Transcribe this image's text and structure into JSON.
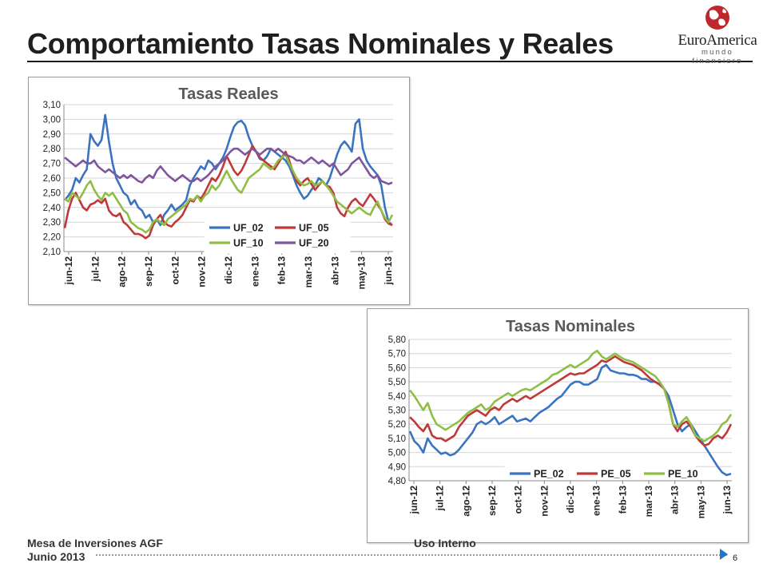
{
  "slide": {
    "title": "Comportamiento Tasas Nominales y Reales",
    "footer_left_line1": "Mesa de Inversiones AGF",
    "footer_left_line2": "Junio 2013",
    "footer_center": "Uso Interno",
    "page_number": "6"
  },
  "logo": {
    "name": "EuroAmerica",
    "tagline": "mundo financiero",
    "icon": "euroamerica-globe-logo",
    "color": "#c0272d"
  },
  "chart_data": [
    {
      "type": "line",
      "title": "Tasas Reales",
      "x_ticks": [
        "jun-12",
        "jul-12",
        "ago-12",
        "sep-12",
        "oct-12",
        "nov-12",
        "dic-12",
        "ene-13",
        "feb-13",
        "mar-13",
        "abr-13",
        "may-13",
        "jun-13"
      ],
      "ylim": [
        2.1,
        3.1
      ],
      "y_ticks": [
        "2,10",
        "2,20",
        "2,30",
        "2,40",
        "2,50",
        "2,60",
        "2,70",
        "2,80",
        "2,90",
        "3,00",
        "3,10"
      ],
      "grid": true,
      "legend": "bottom-right",
      "series": [
        {
          "name": "UF_02",
          "color": "#3a73c0",
          "values": [
            2.45,
            2.48,
            2.52,
            2.6,
            2.57,
            2.62,
            2.66,
            2.9,
            2.85,
            2.82,
            2.86,
            3.03,
            2.85,
            2.7,
            2.6,
            2.55,
            2.5,
            2.48,
            2.42,
            2.45,
            2.4,
            2.38,
            2.33,
            2.35,
            2.3,
            2.32,
            2.28,
            2.35,
            2.38,
            2.42,
            2.38,
            2.4,
            2.42,
            2.45,
            2.55,
            2.6,
            2.64,
            2.68,
            2.66,
            2.72,
            2.7,
            2.66,
            2.7,
            2.74,
            2.8,
            2.88,
            2.95,
            2.98,
            2.99,
            2.96,
            2.88,
            2.82,
            2.78,
            2.73,
            2.72,
            2.75,
            2.8,
            2.78,
            2.76,
            2.74,
            2.72,
            2.68,
            2.62,
            2.55,
            2.5,
            2.46,
            2.48,
            2.52,
            2.55,
            2.6,
            2.58,
            2.55,
            2.6,
            2.68,
            2.76,
            2.82,
            2.85,
            2.82,
            2.78,
            2.97,
            3.0,
            2.8,
            2.72,
            2.68,
            2.65,
            2.62,
            2.55,
            2.4,
            2.3,
            2.28
          ]
        },
        {
          "name": "UF_05",
          "color": "#c0393a",
          "values": [
            2.26,
            2.38,
            2.46,
            2.5,
            2.45,
            2.4,
            2.38,
            2.42,
            2.43,
            2.45,
            2.43,
            2.46,
            2.38,
            2.35,
            2.34,
            2.36,
            2.3,
            2.28,
            2.25,
            2.22,
            2.22,
            2.21,
            2.19,
            2.21,
            2.28,
            2.32,
            2.35,
            2.3,
            2.28,
            2.27,
            2.3,
            2.32,
            2.35,
            2.4,
            2.45,
            2.44,
            2.48,
            2.46,
            2.5,
            2.55,
            2.6,
            2.58,
            2.62,
            2.68,
            2.75,
            2.7,
            2.65,
            2.62,
            2.65,
            2.7,
            2.76,
            2.82,
            2.78,
            2.74,
            2.72,
            2.7,
            2.68,
            2.66,
            2.7,
            2.74,
            2.78,
            2.72,
            2.64,
            2.58,
            2.55,
            2.58,
            2.6,
            2.56,
            2.52,
            2.55,
            2.58,
            2.55,
            2.54,
            2.5,
            2.4,
            2.36,
            2.34,
            2.4,
            2.44,
            2.46,
            2.43,
            2.41,
            2.45,
            2.49,
            2.46,
            2.42,
            2.38,
            2.32,
            2.29,
            2.28
          ]
        },
        {
          "name": "UF_10",
          "color": "#8fbe45",
          "values": [
            2.46,
            2.44,
            2.5,
            2.48,
            2.46,
            2.5,
            2.55,
            2.58,
            2.52,
            2.48,
            2.45,
            2.5,
            2.48,
            2.5,
            2.46,
            2.42,
            2.38,
            2.36,
            2.3,
            2.28,
            2.26,
            2.25,
            2.23,
            2.25,
            2.3,
            2.32,
            2.3,
            2.28,
            2.32,
            2.34,
            2.36,
            2.38,
            2.4,
            2.42,
            2.46,
            2.45,
            2.48,
            2.44,
            2.48,
            2.5,
            2.55,
            2.52,
            2.55,
            2.6,
            2.65,
            2.6,
            2.56,
            2.52,
            2.5,
            2.55,
            2.6,
            2.62,
            2.64,
            2.66,
            2.7,
            2.68,
            2.66,
            2.68,
            2.72,
            2.74,
            2.76,
            2.7,
            2.65,
            2.6,
            2.57,
            2.55,
            2.56,
            2.58,
            2.55,
            2.56,
            2.58,
            2.55,
            2.52,
            2.48,
            2.44,
            2.42,
            2.4,
            2.38,
            2.36,
            2.38,
            2.4,
            2.38,
            2.36,
            2.35,
            2.4,
            2.44,
            2.38,
            2.33,
            2.3,
            2.35
          ]
        },
        {
          "name": "UF_20",
          "color": "#7e569e",
          "values": [
            2.74,
            2.72,
            2.7,
            2.68,
            2.7,
            2.72,
            2.7,
            2.7,
            2.72,
            2.68,
            2.66,
            2.64,
            2.66,
            2.64,
            2.62,
            2.6,
            2.62,
            2.6,
            2.62,
            2.6,
            2.58,
            2.57,
            2.6,
            2.62,
            2.6,
            2.65,
            2.68,
            2.65,
            2.62,
            2.6,
            2.58,
            2.6,
            2.62,
            2.6,
            2.58,
            2.58,
            2.6,
            2.58,
            2.6,
            2.62,
            2.65,
            2.68,
            2.7,
            2.72,
            2.75,
            2.78,
            2.8,
            2.8,
            2.78,
            2.76,
            2.78,
            2.8,
            2.78,
            2.76,
            2.78,
            2.8,
            2.8,
            2.78,
            2.8,
            2.78,
            2.76,
            2.75,
            2.74,
            2.72,
            2.72,
            2.7,
            2.72,
            2.74,
            2.72,
            2.7,
            2.72,
            2.7,
            2.68,
            2.7,
            2.66,
            2.62,
            2.64,
            2.66,
            2.7,
            2.72,
            2.74,
            2.7,
            2.66,
            2.62,
            2.6,
            2.62,
            2.58,
            2.57,
            2.56,
            2.57
          ]
        }
      ]
    },
    {
      "type": "line",
      "title": "Tasas Nominales",
      "x_ticks": [
        "jun-12",
        "jul-12",
        "ago-12",
        "sep-12",
        "oct-12",
        "nov-12",
        "dic-12",
        "ene-13",
        "feb-13",
        "mar-13",
        "abr-13",
        "may-13",
        "jun-13"
      ],
      "ylim": [
        4.8,
        5.8
      ],
      "y_ticks": [
        "4,80",
        "4,90",
        "5,00",
        "5,10",
        "5,20",
        "5,30",
        "5,40",
        "5,50",
        "5,60",
        "5,70",
        "5,80"
      ],
      "grid": true,
      "legend": "bottom-center",
      "series": [
        {
          "name": "PE_02",
          "color": "#3a73c0",
          "values": [
            5.15,
            5.08,
            5.05,
            5.0,
            5.1,
            5.05,
            5.02,
            4.99,
            5.0,
            4.98,
            4.99,
            5.02,
            5.06,
            5.1,
            5.14,
            5.2,
            5.22,
            5.2,
            5.22,
            5.25,
            5.2,
            5.22,
            5.24,
            5.26,
            5.22,
            5.23,
            5.24,
            5.22,
            5.25,
            5.28,
            5.3,
            5.32,
            5.35,
            5.38,
            5.4,
            5.44,
            5.48,
            5.5,
            5.5,
            5.48,
            5.48,
            5.5,
            5.52,
            5.6,
            5.62,
            5.58,
            5.57,
            5.56,
            5.56,
            5.55,
            5.55,
            5.54,
            5.52,
            5.52,
            5.5,
            5.5,
            5.48,
            5.45,
            5.4,
            5.3,
            5.2,
            5.15,
            5.18,
            5.2,
            5.15,
            5.1,
            5.05,
            5.0,
            4.95,
            4.9,
            4.86,
            4.84,
            4.85
          ]
        },
        {
          "name": "PE_05",
          "color": "#c0393a",
          "values": [
            5.25,
            5.22,
            5.18,
            5.15,
            5.2,
            5.12,
            5.1,
            5.1,
            5.08,
            5.1,
            5.12,
            5.18,
            5.22,
            5.26,
            5.28,
            5.3,
            5.28,
            5.26,
            5.3,
            5.32,
            5.3,
            5.34,
            5.36,
            5.38,
            5.36,
            5.38,
            5.4,
            5.38,
            5.4,
            5.42,
            5.44,
            5.46,
            5.48,
            5.5,
            5.52,
            5.54,
            5.56,
            5.55,
            5.56,
            5.56,
            5.58,
            5.6,
            5.62,
            5.65,
            5.64,
            5.66,
            5.68,
            5.66,
            5.64,
            5.63,
            5.62,
            5.6,
            5.58,
            5.55,
            5.52,
            5.5,
            5.48,
            5.45,
            5.35,
            5.2,
            5.15,
            5.2,
            5.22,
            5.18,
            5.12,
            5.08,
            5.05,
            5.06,
            5.1,
            5.12,
            5.1,
            5.14,
            5.2
          ]
        },
        {
          "name": "PE_10",
          "color": "#8fbe45",
          "values": [
            5.44,
            5.4,
            5.35,
            5.3,
            5.35,
            5.26,
            5.2,
            5.18,
            5.16,
            5.18,
            5.2,
            5.22,
            5.25,
            5.28,
            5.3,
            5.32,
            5.34,
            5.3,
            5.32,
            5.36,
            5.38,
            5.4,
            5.42,
            5.4,
            5.42,
            5.44,
            5.45,
            5.44,
            5.46,
            5.48,
            5.5,
            5.52,
            5.55,
            5.56,
            5.58,
            5.6,
            5.62,
            5.6,
            5.62,
            5.64,
            5.66,
            5.7,
            5.72,
            5.68,
            5.66,
            5.68,
            5.7,
            5.68,
            5.66,
            5.65,
            5.64,
            5.62,
            5.6,
            5.58,
            5.56,
            5.54,
            5.5,
            5.45,
            5.35,
            5.2,
            5.18,
            5.22,
            5.25,
            5.2,
            5.12,
            5.1,
            5.08,
            5.1,
            5.12,
            5.15,
            5.2,
            5.22,
            5.27
          ]
        }
      ]
    }
  ]
}
